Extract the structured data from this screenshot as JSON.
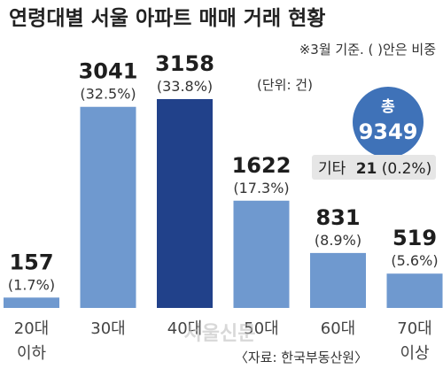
{
  "chart_data": {
    "type": "bar",
    "title": "연령대별 서울 아파트 매매 거래 현황",
    "note": "※3월 기준. ( )안은 비중",
    "unit": "(단위: 건)",
    "categories": [
      [
        "20대",
        "이하"
      ],
      [
        "30대"
      ],
      [
        "40대"
      ],
      [
        "50대"
      ],
      [
        "60대"
      ],
      [
        "70대",
        "이상"
      ]
    ],
    "values": [
      157,
      3041,
      3158,
      1622,
      831,
      519
    ],
    "value_labels": [
      "157",
      "3041",
      "3158",
      "1622",
      "831",
      "519"
    ],
    "shares": [
      "(1.7%)",
      "(32.5%)",
      "(33.8%)",
      "(17.3%)",
      "(8.9%)",
      "(5.6%)"
    ],
    "highlight_index": 2,
    "ylim": [
      0,
      3158
    ],
    "total": {
      "label": "총",
      "value": "9349"
    },
    "other": {
      "label": "기타",
      "value": "21",
      "share": "(0.2%)"
    },
    "source": "〈자료: 한국부동산원〉",
    "watermark": "서울신문",
    "colors": {
      "bar": "#6f99cf",
      "highlight": "#21418a",
      "total_circle": "#3f72b8",
      "other_box": "#e6e6e6"
    }
  }
}
